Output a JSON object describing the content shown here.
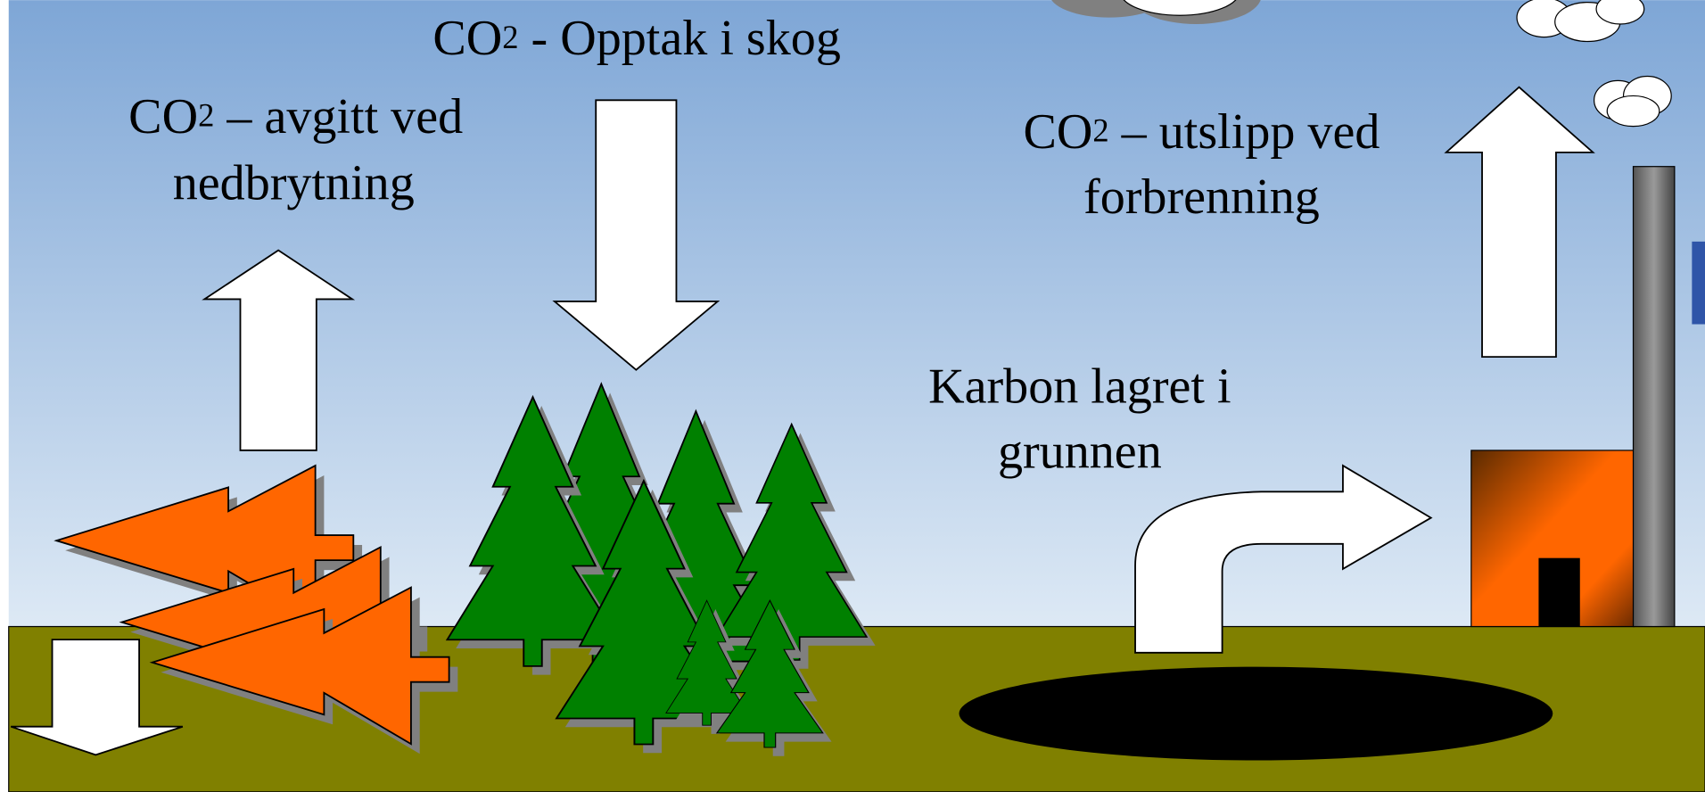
{
  "forest_uptake": {
    "chem": "CO",
    "sup": "2",
    "text": " - Opptak i skog"
  },
  "decomposition": {
    "chem": "CO",
    "sup": "2",
    "text": " – avgitt ved",
    "line2": "nedbrytning"
  },
  "combustion": {
    "chem": "CO",
    "sup": "2",
    "text": " – utslipp ved",
    "line2": "forbrenning"
  },
  "ground_storage": {
    "line1": "Karbon lagret i",
    "line2": "grunnen"
  }
}
